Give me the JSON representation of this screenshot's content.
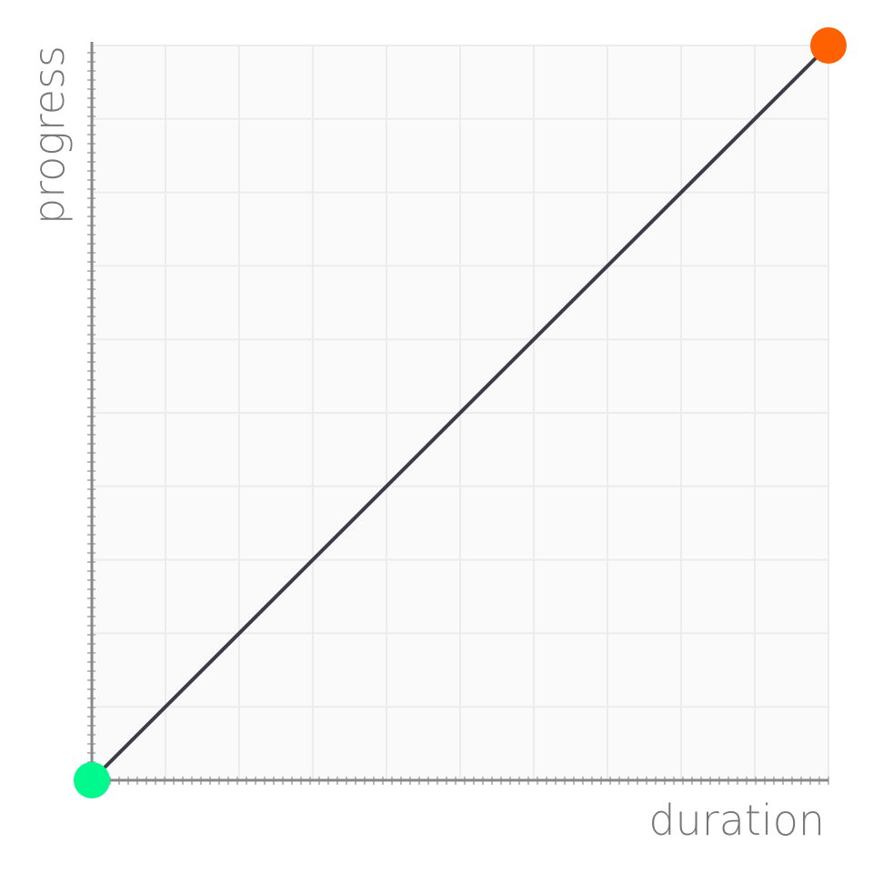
{
  "chart_data": {
    "type": "line",
    "xlabel": "duration",
    "ylabel": "progress",
    "xlim": [
      0,
      1
    ],
    "ylim": [
      0,
      1
    ],
    "grid": true,
    "series": [
      {
        "x": [
          0,
          1
        ],
        "y": [
          0,
          1
        ]
      }
    ],
    "colors": {
      "line": "#3d3b47",
      "start_point": "#00f98d",
      "end_point": "#ff6100",
      "axis": "#888888",
      "grid": "#ececec",
      "plot_bg": "#fafafa"
    }
  }
}
